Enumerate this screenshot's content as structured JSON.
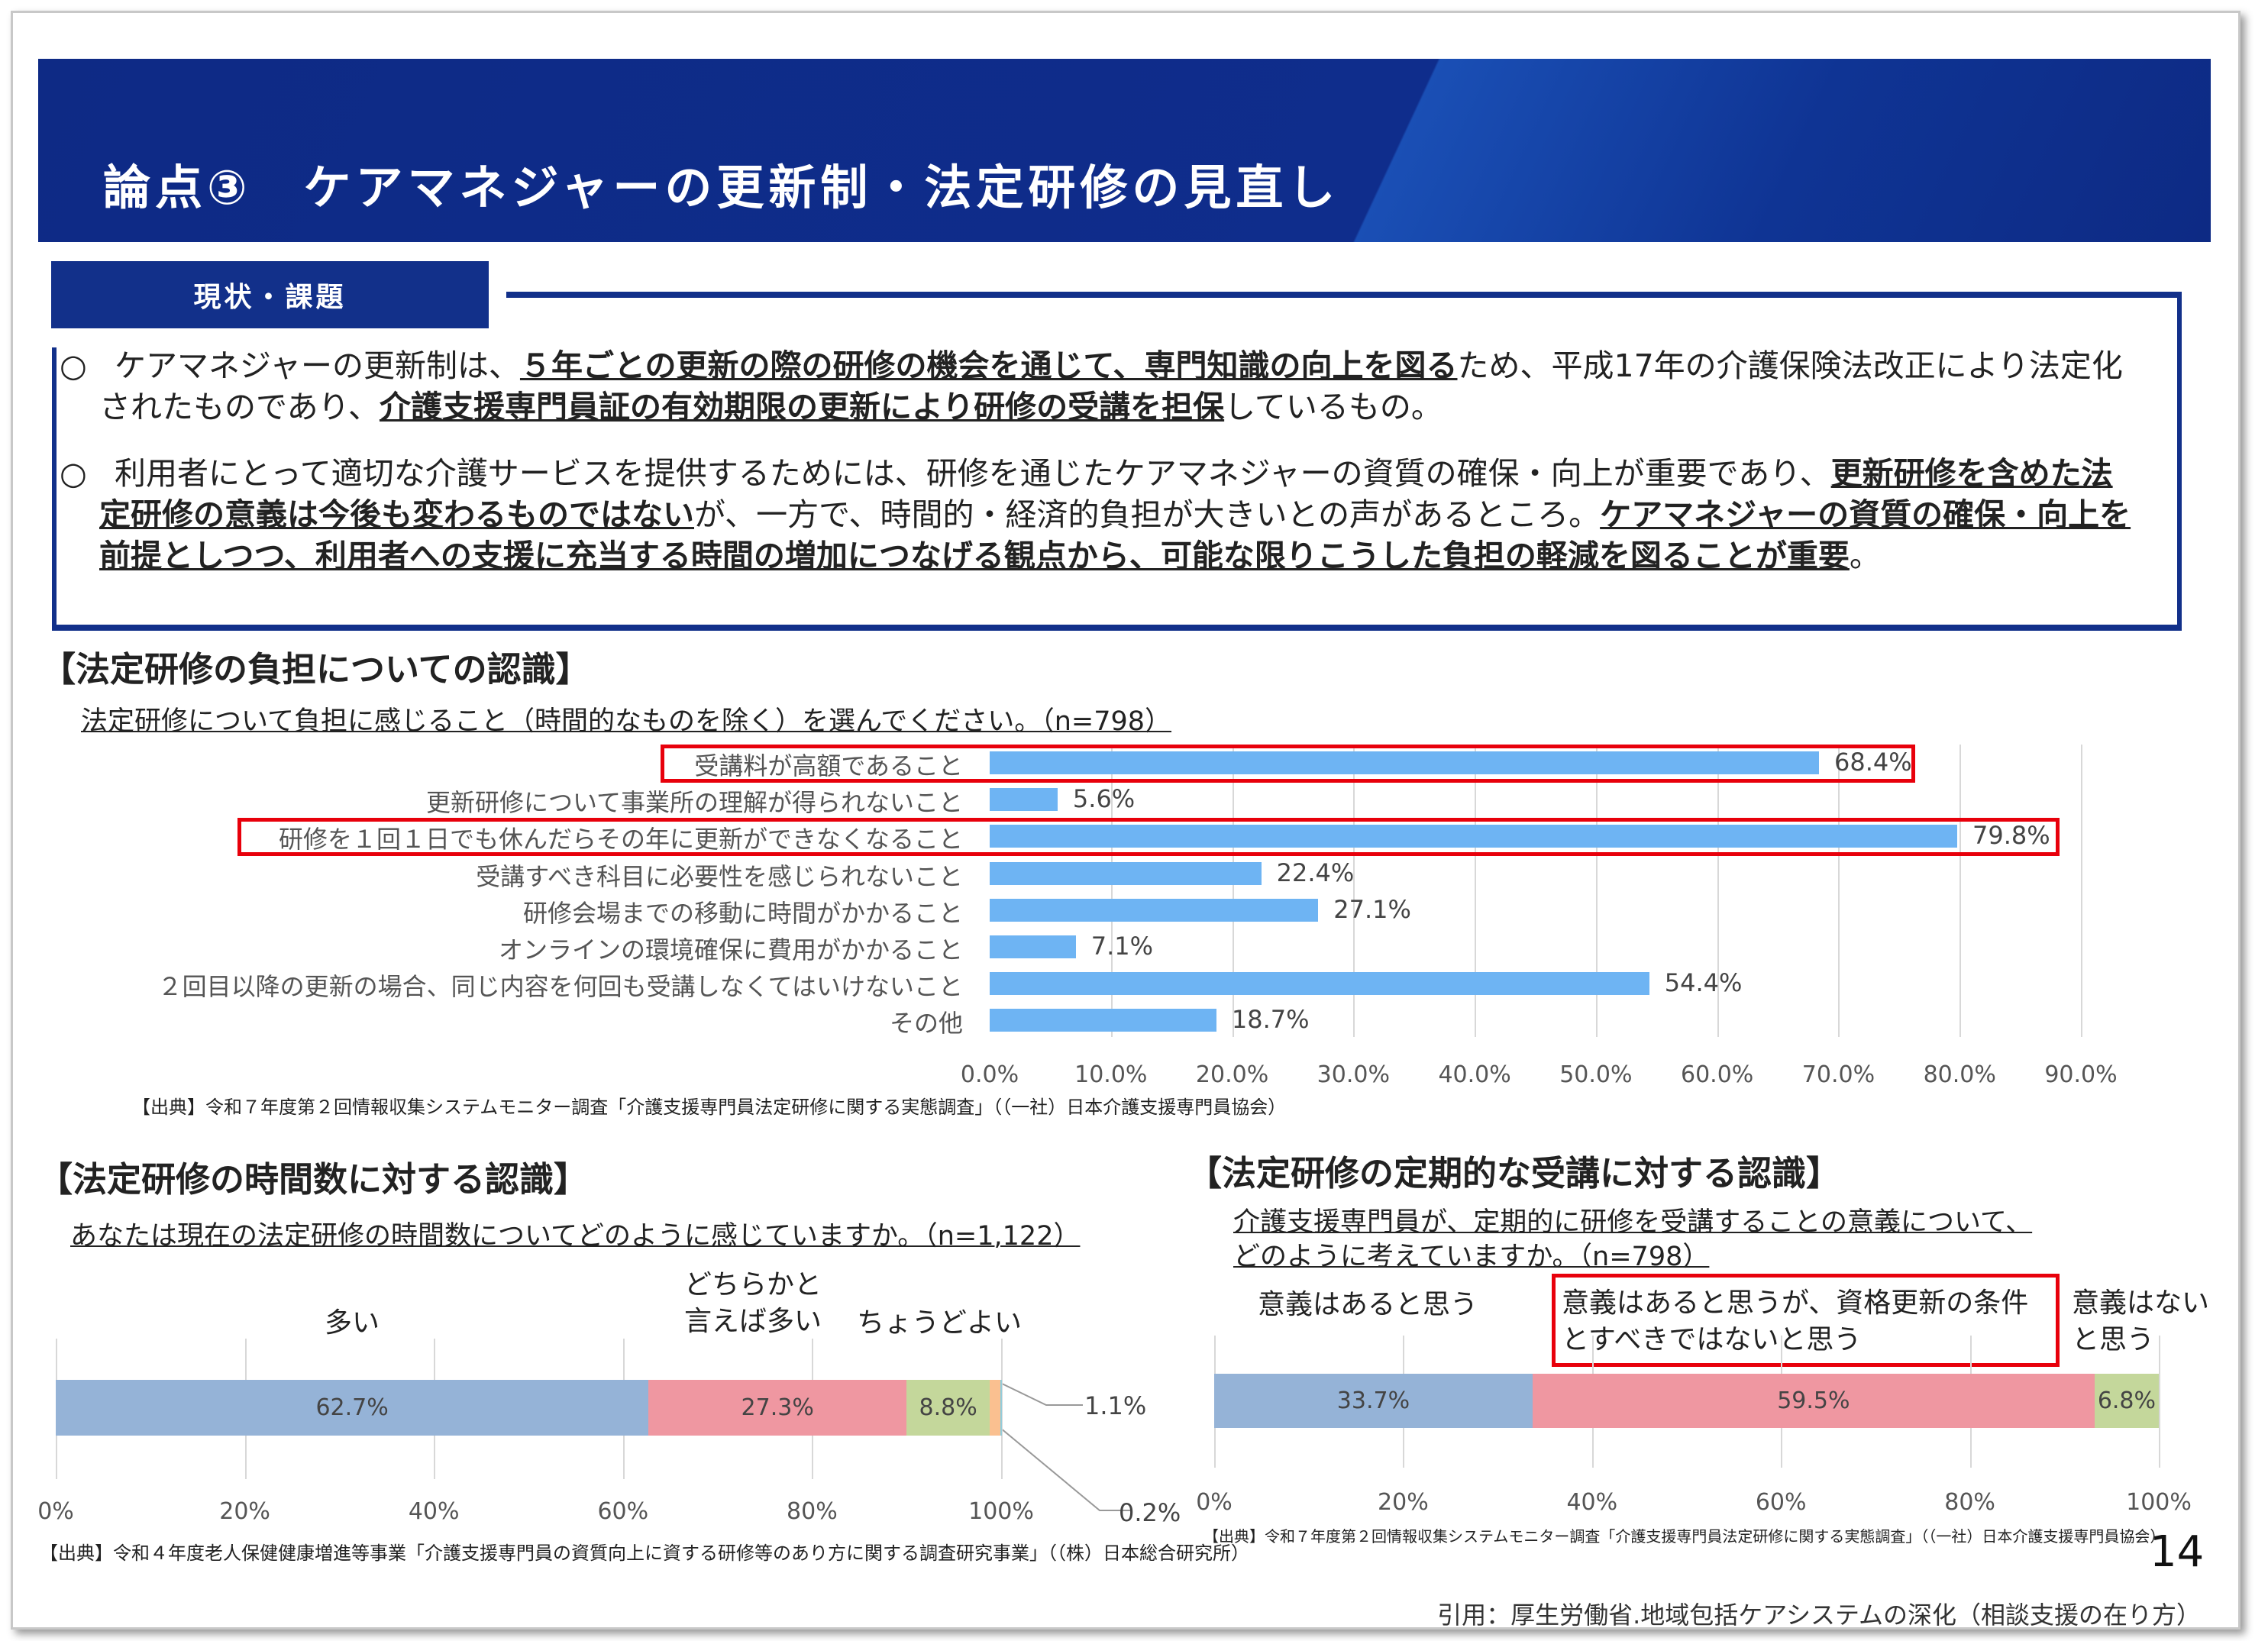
{
  "header": {
    "title": "論点③　ケアマネジャーの更新制・法定研修の見直し"
  },
  "tab": {
    "label": "現状・課題"
  },
  "paragraphs": [
    {
      "bullet": "○",
      "segments": [
        {
          "text": "ケアマネジャーの更新制は、",
          "strong": false
        },
        {
          "text": "５年ごとの更新の際の研修の機会を通じて、専門知識の向上を図る",
          "strong": true
        },
        {
          "text": "ため、平成17年の介護保険法改正により法定化されたものであり、",
          "strong": false
        },
        {
          "text": "介護支援専門員証の有効期限の更新により研修の受講を担保",
          "strong": true
        },
        {
          "text": "しているもの。",
          "strong": false
        }
      ]
    },
    {
      "bullet": "○",
      "segments": [
        {
          "text": "利用者にとって適切な介護サービスを提供するためには、研修を通じたケアマネジャーの資質の確保・向上が重要であり、",
          "strong": false
        },
        {
          "text": "更新研修を含めた法定研修の意義は今後も変わるものではない",
          "strong": true
        },
        {
          "text": "が、一方で、時間的・経済的負担が大きいとの声があるところ。",
          "strong": false
        },
        {
          "text": "ケアマネジャーの資質の確保・向上を前提としつつ、利用者への支援に充当する時間の増加につなげる観点から、可能な限りこうした負担の軽減を図ることが重要",
          "strong": true
        },
        {
          "text": "。",
          "strong": false
        }
      ]
    }
  ],
  "chart_data": [
    {
      "type": "bar",
      "orientation": "horizontal",
      "title": "【法定研修の負担についての認識】",
      "subtitle": "法定研修について負担に感じること（時間的なものを除く）を選んでください。（n=798）",
      "categories": [
        "受講料が高額であること",
        "更新研修について事業所の理解が得られないこと",
        "研修を１回１日でも休んだらその年に更新ができなくなること",
        "受講すべき科目に必要性を感じられないこと",
        "研修会場までの移動に時間がかかること",
        "オンラインの環境確保に費用がかかること",
        "２回目以降の更新の場合、同じ内容を何回も受講しなくてはいけないこと",
        "その他"
      ],
      "values": [
        68.4,
        5.6,
        79.8,
        22.4,
        27.1,
        7.1,
        54.4,
        18.7
      ],
      "value_labels": [
        "68.4%",
        "5.6%",
        "79.8%",
        "22.4%",
        "27.1%",
        "7.1%",
        "54.4%",
        "18.7%"
      ],
      "highlighted": [
        0,
        2
      ],
      "xlim": [
        0,
        90
      ],
      "ticks": [
        "0.0%",
        "10.0%",
        "20.0%",
        "30.0%",
        "40.0%",
        "50.0%",
        "60.0%",
        "70.0%",
        "80.0%",
        "90.0%"
      ],
      "color": "#6eb4f3",
      "source": "【出典】令和７年度第２回情報収集システムモニター調査「介護支援専門員法定研修に関する実態調査」（（一社）日本介護支援専門員協会）"
    },
    {
      "type": "bar",
      "orientation": "stacked-100",
      "title": "【法定研修の時間数に対する認識】",
      "subtitle": "あなたは現在の法定研修の時間数についてどのように感じていますか。（n=1,122）",
      "series": [
        {
          "name": "多い",
          "value": 62.7,
          "label": "62.7%",
          "color": "#95b3d7"
        },
        {
          "name": "どちらかと\n言えば多い",
          "value": 27.3,
          "label": "27.3%",
          "color": "#ef97a1"
        },
        {
          "name": "ちょうどよい",
          "value": 8.8,
          "label": "8.8%",
          "color": "#c4d79b"
        },
        {
          "name": "",
          "value": 1.1,
          "label": "1.1%",
          "color": "#fac090"
        },
        {
          "name": "",
          "value": 0.2,
          "label": "0.2%",
          "color": "#92cddc"
        }
      ],
      "name_lines": {
        "a": "どちらかと",
        "b": "言えば多い"
      },
      "ticks": [
        "0%",
        "20%",
        "40%",
        "60%",
        "80%",
        "100%"
      ],
      "source": "【出典】令和４年度老人保健健康増進等事業「介護支援専門員の資質向上に資する研修等のあり方に関する調査研究事業」（（株）日本総合研究所）"
    },
    {
      "type": "bar",
      "orientation": "stacked-100",
      "title": "【法定研修の定期的な受講に対する認識】",
      "subtitle_lines": [
        "介護支援専門員が、定期的に研修を受講することの意義について、",
        "どのように考えていますか。（n=798）"
      ],
      "series": [
        {
          "name": "意義はあると思う",
          "value": 33.7,
          "label": "33.7%",
          "color": "#95b3d7"
        },
        {
          "name": "意義はあると思うが、資格更新の条件とすべきではないと思う",
          "value": 59.5,
          "label": "59.5%",
          "color": "#ef97a1"
        },
        {
          "name": "意義はないと思う",
          "value": 6.8,
          "label": "6.8%",
          "color": "#c4d79b"
        }
      ],
      "name_lines": {
        "b1": "意義はあると思うが、資格更新の条件",
        "b2": "とすべきではないと思う",
        "c1": "意義はない",
        "c2": "と思う"
      },
      "highlighted": [
        1
      ],
      "ticks": [
        "0%",
        "20%",
        "40%",
        "60%",
        "80%",
        "100%"
      ],
      "source": "【出典】令和７年度第２回情報収集システムモニター調査「介護支援専門員法定研修に関する実態調査」（（一社）日本介護支援専門員協会）"
    }
  ],
  "footer": {
    "page_number": "14",
    "citation": "引用：厚生労働省.地域包括ケアシステムの深化（相談支援の在り方）"
  }
}
